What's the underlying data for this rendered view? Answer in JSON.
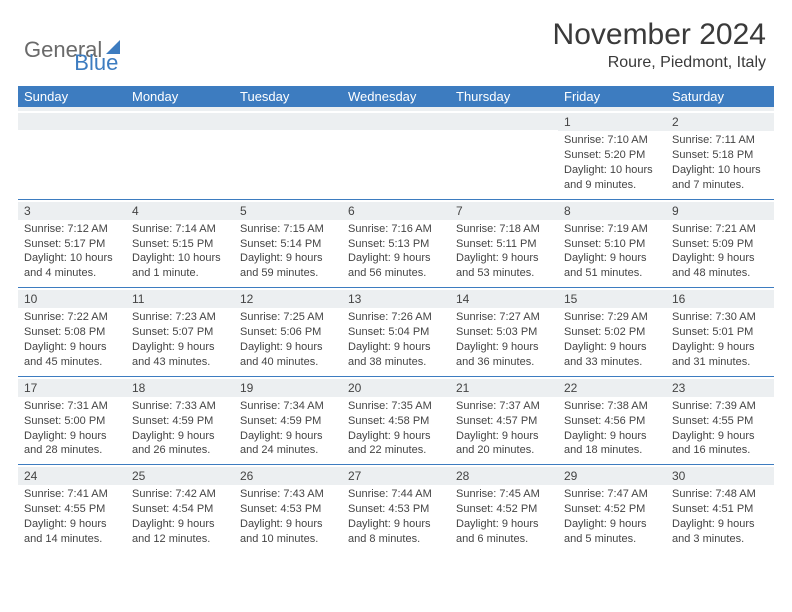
{
  "brand": {
    "part1": "General",
    "part2": "Blue"
  },
  "title": "November 2024",
  "location": "Roure, Piedmont, Italy",
  "colors": {
    "header_bg": "#3d7cc0",
    "header_text": "#ffffff",
    "daynum_bg": "#eceff1",
    "text": "#444444",
    "page_bg": "#ffffff"
  },
  "dow": [
    "Sunday",
    "Monday",
    "Tuesday",
    "Wednesday",
    "Thursday",
    "Friday",
    "Saturday"
  ],
  "weeks": [
    [
      null,
      null,
      null,
      null,
      null,
      {
        "n": "1",
        "sr": "Sunrise: 7:10 AM",
        "ss": "Sunset: 5:20 PM",
        "dl1": "Daylight: 10 hours",
        "dl2": "and 9 minutes."
      },
      {
        "n": "2",
        "sr": "Sunrise: 7:11 AM",
        "ss": "Sunset: 5:18 PM",
        "dl1": "Daylight: 10 hours",
        "dl2": "and 7 minutes."
      }
    ],
    [
      {
        "n": "3",
        "sr": "Sunrise: 7:12 AM",
        "ss": "Sunset: 5:17 PM",
        "dl1": "Daylight: 10 hours",
        "dl2": "and 4 minutes."
      },
      {
        "n": "4",
        "sr": "Sunrise: 7:14 AM",
        "ss": "Sunset: 5:15 PM",
        "dl1": "Daylight: 10 hours",
        "dl2": "and 1 minute."
      },
      {
        "n": "5",
        "sr": "Sunrise: 7:15 AM",
        "ss": "Sunset: 5:14 PM",
        "dl1": "Daylight: 9 hours",
        "dl2": "and 59 minutes."
      },
      {
        "n": "6",
        "sr": "Sunrise: 7:16 AM",
        "ss": "Sunset: 5:13 PM",
        "dl1": "Daylight: 9 hours",
        "dl2": "and 56 minutes."
      },
      {
        "n": "7",
        "sr": "Sunrise: 7:18 AM",
        "ss": "Sunset: 5:11 PM",
        "dl1": "Daylight: 9 hours",
        "dl2": "and 53 minutes."
      },
      {
        "n": "8",
        "sr": "Sunrise: 7:19 AM",
        "ss": "Sunset: 5:10 PM",
        "dl1": "Daylight: 9 hours",
        "dl2": "and 51 minutes."
      },
      {
        "n": "9",
        "sr": "Sunrise: 7:21 AM",
        "ss": "Sunset: 5:09 PM",
        "dl1": "Daylight: 9 hours",
        "dl2": "and 48 minutes."
      }
    ],
    [
      {
        "n": "10",
        "sr": "Sunrise: 7:22 AM",
        "ss": "Sunset: 5:08 PM",
        "dl1": "Daylight: 9 hours",
        "dl2": "and 45 minutes."
      },
      {
        "n": "11",
        "sr": "Sunrise: 7:23 AM",
        "ss": "Sunset: 5:07 PM",
        "dl1": "Daylight: 9 hours",
        "dl2": "and 43 minutes."
      },
      {
        "n": "12",
        "sr": "Sunrise: 7:25 AM",
        "ss": "Sunset: 5:06 PM",
        "dl1": "Daylight: 9 hours",
        "dl2": "and 40 minutes."
      },
      {
        "n": "13",
        "sr": "Sunrise: 7:26 AM",
        "ss": "Sunset: 5:04 PM",
        "dl1": "Daylight: 9 hours",
        "dl2": "and 38 minutes."
      },
      {
        "n": "14",
        "sr": "Sunrise: 7:27 AM",
        "ss": "Sunset: 5:03 PM",
        "dl1": "Daylight: 9 hours",
        "dl2": "and 36 minutes."
      },
      {
        "n": "15",
        "sr": "Sunrise: 7:29 AM",
        "ss": "Sunset: 5:02 PM",
        "dl1": "Daylight: 9 hours",
        "dl2": "and 33 minutes."
      },
      {
        "n": "16",
        "sr": "Sunrise: 7:30 AM",
        "ss": "Sunset: 5:01 PM",
        "dl1": "Daylight: 9 hours",
        "dl2": "and 31 minutes."
      }
    ],
    [
      {
        "n": "17",
        "sr": "Sunrise: 7:31 AM",
        "ss": "Sunset: 5:00 PM",
        "dl1": "Daylight: 9 hours",
        "dl2": "and 28 minutes."
      },
      {
        "n": "18",
        "sr": "Sunrise: 7:33 AM",
        "ss": "Sunset: 4:59 PM",
        "dl1": "Daylight: 9 hours",
        "dl2": "and 26 minutes."
      },
      {
        "n": "19",
        "sr": "Sunrise: 7:34 AM",
        "ss": "Sunset: 4:59 PM",
        "dl1": "Daylight: 9 hours",
        "dl2": "and 24 minutes."
      },
      {
        "n": "20",
        "sr": "Sunrise: 7:35 AM",
        "ss": "Sunset: 4:58 PM",
        "dl1": "Daylight: 9 hours",
        "dl2": "and 22 minutes."
      },
      {
        "n": "21",
        "sr": "Sunrise: 7:37 AM",
        "ss": "Sunset: 4:57 PM",
        "dl1": "Daylight: 9 hours",
        "dl2": "and 20 minutes."
      },
      {
        "n": "22",
        "sr": "Sunrise: 7:38 AM",
        "ss": "Sunset: 4:56 PM",
        "dl1": "Daylight: 9 hours",
        "dl2": "and 18 minutes."
      },
      {
        "n": "23",
        "sr": "Sunrise: 7:39 AM",
        "ss": "Sunset: 4:55 PM",
        "dl1": "Daylight: 9 hours",
        "dl2": "and 16 minutes."
      }
    ],
    [
      {
        "n": "24",
        "sr": "Sunrise: 7:41 AM",
        "ss": "Sunset: 4:55 PM",
        "dl1": "Daylight: 9 hours",
        "dl2": "and 14 minutes."
      },
      {
        "n": "25",
        "sr": "Sunrise: 7:42 AM",
        "ss": "Sunset: 4:54 PM",
        "dl1": "Daylight: 9 hours",
        "dl2": "and 12 minutes."
      },
      {
        "n": "26",
        "sr": "Sunrise: 7:43 AM",
        "ss": "Sunset: 4:53 PM",
        "dl1": "Daylight: 9 hours",
        "dl2": "and 10 minutes."
      },
      {
        "n": "27",
        "sr": "Sunrise: 7:44 AM",
        "ss": "Sunset: 4:53 PM",
        "dl1": "Daylight: 9 hours",
        "dl2": "and 8 minutes."
      },
      {
        "n": "28",
        "sr": "Sunrise: 7:45 AM",
        "ss": "Sunset: 4:52 PM",
        "dl1": "Daylight: 9 hours",
        "dl2": "and 6 minutes."
      },
      {
        "n": "29",
        "sr": "Sunrise: 7:47 AM",
        "ss": "Sunset: 4:52 PM",
        "dl1": "Daylight: 9 hours",
        "dl2": "and 5 minutes."
      },
      {
        "n": "30",
        "sr": "Sunrise: 7:48 AM",
        "ss": "Sunset: 4:51 PM",
        "dl1": "Daylight: 9 hours",
        "dl2": "and 3 minutes."
      }
    ]
  ]
}
